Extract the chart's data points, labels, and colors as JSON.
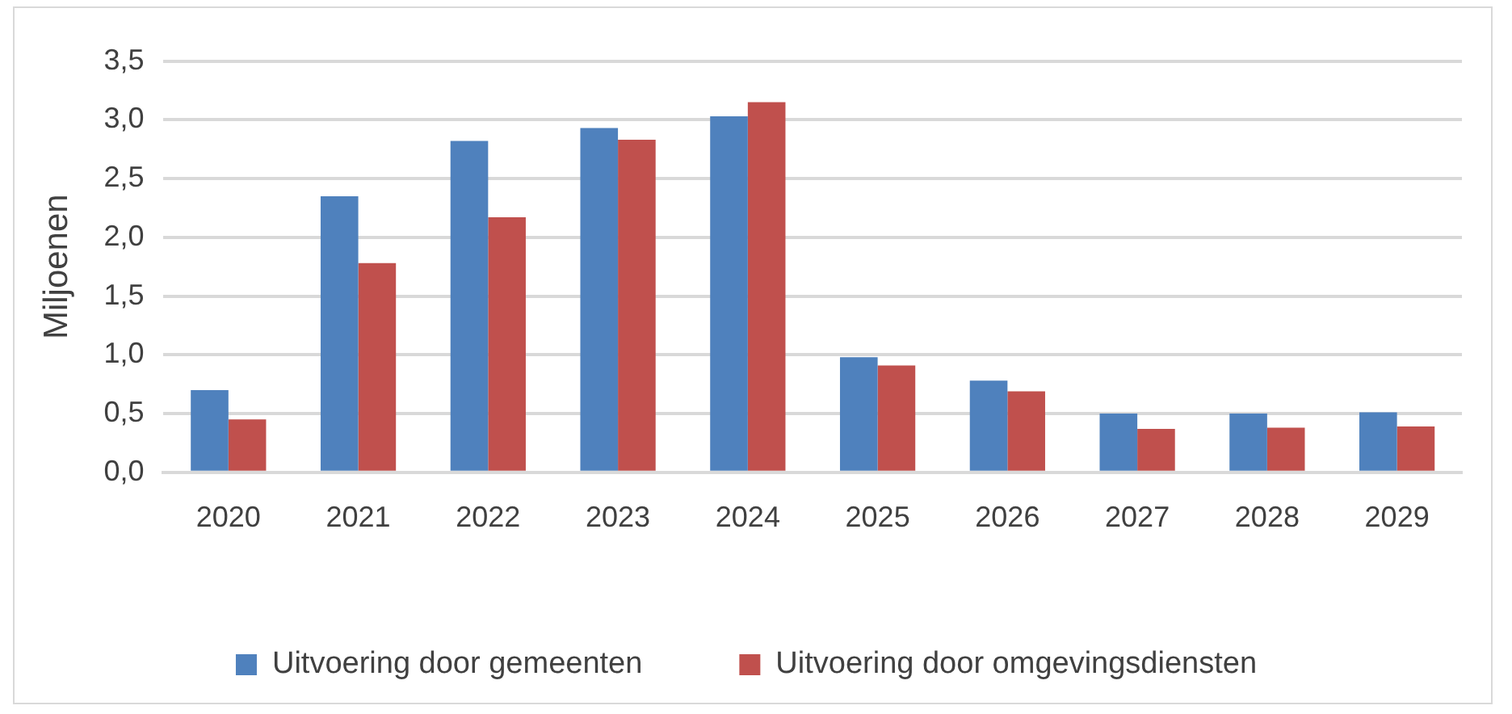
{
  "chart_data": {
    "type": "bar",
    "ylabel": "Miljoenen",
    "categories": [
      "2020",
      "2021",
      "2022",
      "2023",
      "2024",
      "2025",
      "2026",
      "2027",
      "2028",
      "2029"
    ],
    "series": [
      {
        "name": "Uitvoering door gemeenten",
        "color": "#4f81bd",
        "values": [
          0.7,
          2.35,
          2.82,
          2.93,
          3.03,
          0.98,
          0.78,
          0.5,
          0.5,
          0.51
        ]
      },
      {
        "name": "Uitvoering door omgevingsdiensten",
        "color": "#c0504d",
        "values": [
          0.45,
          1.78,
          2.17,
          2.83,
          3.15,
          0.91,
          0.69,
          0.37,
          0.38,
          0.39
        ]
      }
    ],
    "ylim": [
      0,
      3.5
    ],
    "yticks": [
      {
        "value": 0,
        "label": "0,0"
      },
      {
        "value": 0.5,
        "label": "0,5"
      },
      {
        "value": 1,
        "label": "1,0"
      },
      {
        "value": 1.5,
        "label": "1,5"
      },
      {
        "value": 2,
        "label": "2,0"
      },
      {
        "value": 2.5,
        "label": "2,5"
      },
      {
        "value": 3,
        "label": "3,0"
      },
      {
        "value": 3.5,
        "label": "3,5"
      }
    ],
    "grid": "y",
    "legend": "bottom"
  }
}
